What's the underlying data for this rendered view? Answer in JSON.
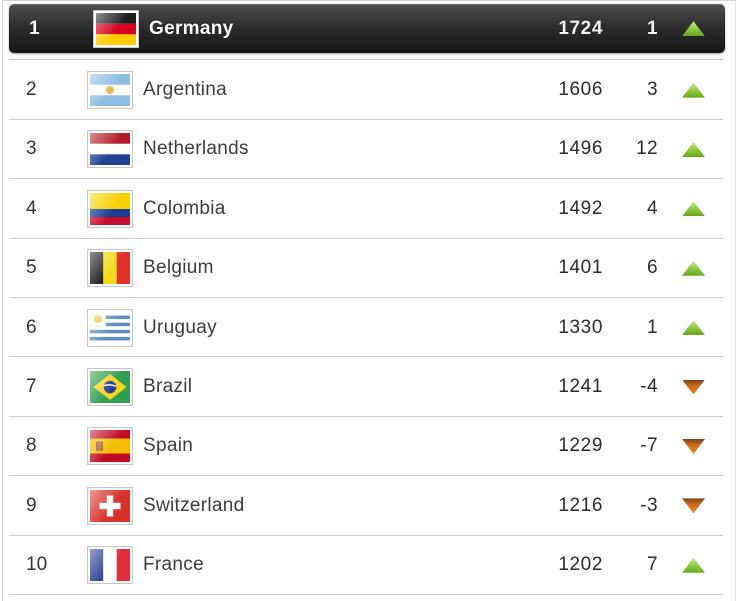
{
  "table": {
    "name": "world-ranking",
    "columns": [
      "rank",
      "flag",
      "country",
      "points",
      "rank_change",
      "trend"
    ],
    "rows": [
      {
        "rank": "1",
        "country": "Germany",
        "flag": "de",
        "points": "1724",
        "change": "1",
        "trend": "up",
        "highlighted": true
      },
      {
        "rank": "2",
        "country": "Argentina",
        "flag": "ar",
        "points": "1606",
        "change": "3",
        "trend": "up",
        "highlighted": false
      },
      {
        "rank": "3",
        "country": "Netherlands",
        "flag": "nl",
        "points": "1496",
        "change": "12",
        "trend": "up",
        "highlighted": false
      },
      {
        "rank": "4",
        "country": "Colombia",
        "flag": "co",
        "points": "1492",
        "change": "4",
        "trend": "up",
        "highlighted": false
      },
      {
        "rank": "5",
        "country": "Belgium",
        "flag": "be",
        "points": "1401",
        "change": "6",
        "trend": "up",
        "highlighted": false
      },
      {
        "rank": "6",
        "country": "Uruguay",
        "flag": "uy",
        "points": "1330",
        "change": "1",
        "trend": "up",
        "highlighted": false
      },
      {
        "rank": "7",
        "country": "Brazil",
        "flag": "br",
        "points": "1241",
        "change": "-4",
        "trend": "down",
        "highlighted": false
      },
      {
        "rank": "8",
        "country": "Spain",
        "flag": "es",
        "points": "1229",
        "change": "-7",
        "trend": "down",
        "highlighted": false
      },
      {
        "rank": "9",
        "country": "Switzerland",
        "flag": "ch",
        "points": "1216",
        "change": "-3",
        "trend": "down",
        "highlighted": false
      },
      {
        "rank": "10",
        "country": "France",
        "flag": "fr",
        "points": "1202",
        "change": "7",
        "trend": "up",
        "highlighted": false
      }
    ]
  },
  "icons": {
    "trend_up": "green-up-triangle",
    "trend_down": "orange-down-triangle"
  },
  "colors": {
    "trend_up": "#8cc63f",
    "trend_down": "#e8761c",
    "highlight_row_bg": "#2b2b2b",
    "highlight_text": "#ffffff",
    "row_separator": "#cccccc",
    "table_border": "#ccd5dd",
    "text": "#333333",
    "background": "#ffffff"
  }
}
